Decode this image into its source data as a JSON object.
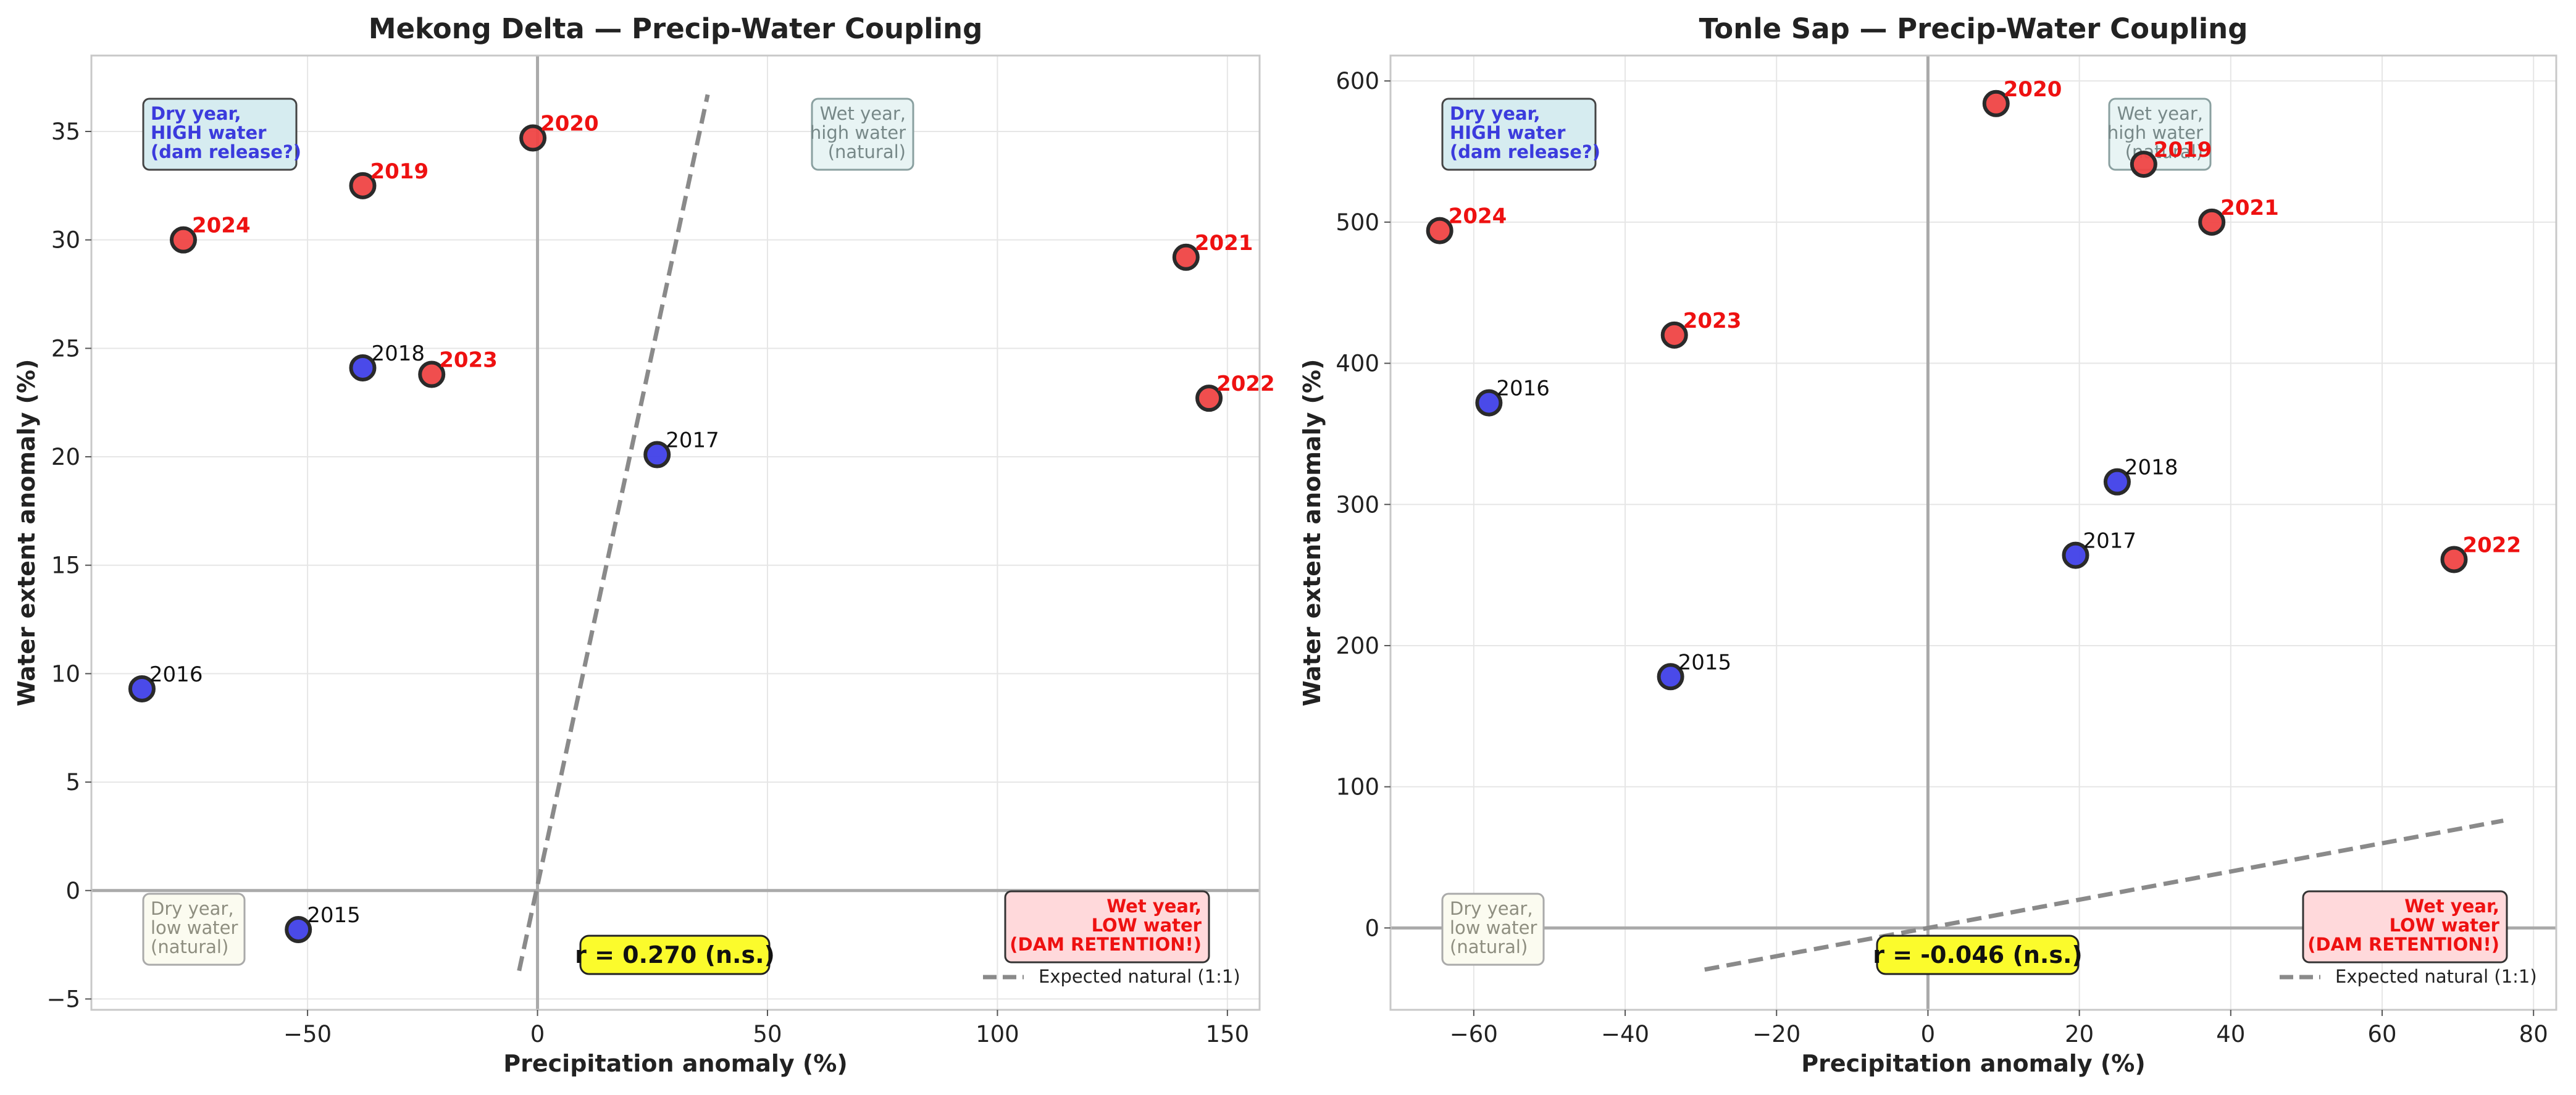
{
  "chart_data": [
    {
      "type": "scatter",
      "title": "Mekong Delta — Precip-Water Coupling",
      "xlabel": "Precipitation anomaly (%)",
      "ylabel": "Water extent anomaly (%)",
      "xlim": [
        -97,
        157
      ],
      "ylim": [
        -5.5,
        38.5
      ],
      "xticks": [
        -50,
        0,
        50,
        100,
        150
      ],
      "yticks": [
        -5,
        0,
        5,
        10,
        15,
        20,
        25,
        30,
        35
      ],
      "grid": true,
      "legend_position": "lower-right",
      "legend": [
        {
          "label": "Expected natural (1:1)",
          "style": "dashed",
          "color": "#8a8a8a"
        }
      ],
      "reference_line": {
        "label": "Expected natural (1:1)",
        "from": [
          -4,
          -3.7
        ],
        "to": [
          37,
          36.7
        ]
      },
      "correlation_label": "r = 0.270 (n.s.)",
      "points": [
        {
          "year": "2015",
          "x": -52,
          "y": -1.8,
          "group": "blue"
        },
        {
          "year": "2016",
          "x": -86,
          "y": 9.3,
          "group": "blue"
        },
        {
          "year": "2017",
          "x": 26,
          "y": 20.1,
          "group": "blue"
        },
        {
          "year": "2018",
          "x": -38,
          "y": 24.1,
          "group": "blue"
        },
        {
          "year": "2019",
          "x": -38,
          "y": 32.5,
          "group": "red"
        },
        {
          "year": "2020",
          "x": -1,
          "y": 34.7,
          "group": "red"
        },
        {
          "year": "2021",
          "x": 141,
          "y": 29.2,
          "group": "red"
        },
        {
          "year": "2022",
          "x": 146,
          "y": 22.7,
          "group": "red"
        },
        {
          "year": "2023",
          "x": -23,
          "y": 23.8,
          "group": "red"
        },
        {
          "year": "2024",
          "x": -77,
          "y": 30.0,
          "group": "red"
        }
      ],
      "quadrant_notes": [
        {
          "pos": "top-left",
          "lines": [
            "Dry year,",
            "HIGH water",
            "(dam release?)"
          ],
          "style": "blue"
        },
        {
          "pos": "top-right",
          "lines": [
            "Wet year,",
            "high water",
            "(natural)"
          ],
          "style": "teal"
        },
        {
          "pos": "bottom-left",
          "lines": [
            "Dry year,",
            "low water",
            "(natural)"
          ],
          "style": "beige"
        },
        {
          "pos": "bottom-right",
          "lines": [
            "Wet year,",
            "LOW water",
            "(DAM RETENTION!)"
          ],
          "style": "red"
        }
      ]
    },
    {
      "type": "scatter",
      "title": "Tonle Sap — Precip-Water Coupling",
      "xlabel": "Precipitation anomaly (%)",
      "ylabel": "Water extent anomaly (%)",
      "xlim": [
        -71,
        83
      ],
      "ylim": [
        -58,
        618
      ],
      "xticks": [
        -60,
        -40,
        -20,
        0,
        20,
        40,
        60,
        80
      ],
      "yticks": [
        0,
        100,
        200,
        300,
        400,
        500,
        600
      ],
      "grid": true,
      "legend_position": "lower-right",
      "legend": [
        {
          "label": "Expected natural (1:1)",
          "style": "dashed",
          "color": "#8a8a8a"
        }
      ],
      "reference_line": {
        "label": "Expected natural (1:1)",
        "from": [
          -29.5,
          -29.5
        ],
        "to": [
          76,
          76
        ]
      },
      "correlation_label": "r = -0.046 (n.s.)",
      "points": [
        {
          "year": "2015",
          "x": -34,
          "y": 178,
          "group": "blue"
        },
        {
          "year": "2016",
          "x": -58,
          "y": 372,
          "group": "blue"
        },
        {
          "year": "2017",
          "x": 19.5,
          "y": 264,
          "group": "blue"
        },
        {
          "year": "2018",
          "x": 25,
          "y": 316,
          "group": "blue"
        },
        {
          "year": "2019",
          "x": 28.5,
          "y": 541,
          "group": "red"
        },
        {
          "year": "2020",
          "x": 9,
          "y": 584,
          "group": "red"
        },
        {
          "year": "2021",
          "x": 37.5,
          "y": 500,
          "group": "red"
        },
        {
          "year": "2022",
          "x": 69.5,
          "y": 261,
          "group": "red"
        },
        {
          "year": "2023",
          "x": -33.5,
          "y": 420,
          "group": "red"
        },
        {
          "year": "2024",
          "x": -64.5,
          "y": 494,
          "group": "red"
        }
      ],
      "quadrant_notes": [
        {
          "pos": "top-left",
          "lines": [
            "Dry year,",
            "HIGH water",
            "(dam release?)"
          ],
          "style": "blue"
        },
        {
          "pos": "top-right",
          "lines": [
            "Wet year,",
            "high water",
            "(natural)"
          ],
          "style": "teal"
        },
        {
          "pos": "bottom-left",
          "lines": [
            "Dry year,",
            "low water",
            "(natural)"
          ],
          "style": "beige"
        },
        {
          "pos": "bottom-right",
          "lines": [
            "Wet year,",
            "LOW water",
            "(DAM RETENTION!)"
          ],
          "style": "red"
        }
      ]
    }
  ],
  "colors": {
    "point_blue": "#4040e8",
    "point_red": "#ef4444",
    "label_red": "#ee1111",
    "label_dark": "#111111",
    "zero_line": "#aaaaaa",
    "grid": "#e6e6e6",
    "ref_line": "#8a8a8a",
    "r_box": "#fbfb2c"
  }
}
